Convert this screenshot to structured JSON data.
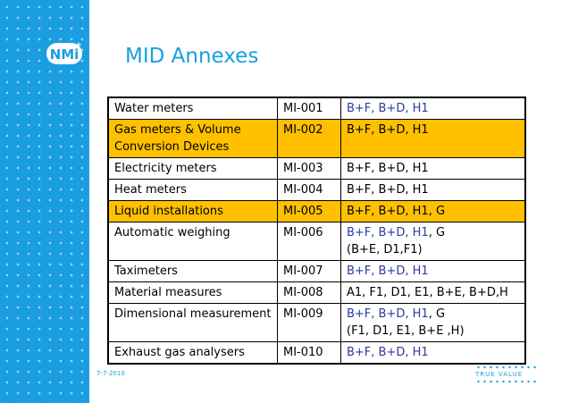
{
  "title": "MID Annexes",
  "logo_text": "NMi",
  "rows": [
    {
      "name": "Water meters",
      "code": "MI-001",
      "mods": [
        {
          "t": "B+F, B+D, H1",
          "c": "blue"
        }
      ],
      "mods2": [],
      "highlight": false
    },
    {
      "name": "Gas meters & Volume Conversion Devices",
      "code": "MI-002",
      "mods": [
        {
          "t": "B+F, B+D, H1",
          "c": "black"
        }
      ],
      "mods2": [],
      "highlight": true
    },
    {
      "name": "Electricity meters",
      "code": "MI-003",
      "mods": [
        {
          "t": "B+F, B+D, H1",
          "c": "black"
        }
      ],
      "mods2": [],
      "highlight": false
    },
    {
      "name": "Heat meters",
      "code": "MI-004",
      "mods": [
        {
          "t": "B+F, B+D, H1",
          "c": "black"
        }
      ],
      "mods2": [],
      "highlight": false
    },
    {
      "name": "Liquid installations",
      "code": "MI-005",
      "mods": [
        {
          "t": "B+F, B+D, H1, G",
          "c": "black"
        }
      ],
      "mods2": [],
      "highlight": true
    },
    {
      "name": "Automatic weighing",
      "code": "MI-006",
      "mods": [
        {
          "t": "B+F, B+D, H1",
          "c": "blue"
        },
        {
          "t": ", G",
          "c": "black"
        }
      ],
      "mods2": [
        {
          "t": "(B+E, D1,F1)",
          "c": "black"
        }
      ],
      "highlight": false
    },
    {
      "name": "Taximeters",
      "code": "MI-007",
      "mods": [
        {
          "t": "B+F, B+D, H1",
          "c": "blue"
        }
      ],
      "mods2": [],
      "highlight": false
    },
    {
      "name": "Material measures",
      "code": "MI-008",
      "mods": [
        {
          "t": "A1, F1, D1, E1, B+E, B+D,H",
          "c": "black"
        }
      ],
      "mods2": [],
      "highlight": false
    },
    {
      "name": "Dimensional measurement",
      "code": "MI-009",
      "mods": [
        {
          "t": "B+F, B+D, H1",
          "c": "blue"
        },
        {
          "t": ", G",
          "c": "black"
        }
      ],
      "mods2": [
        {
          "t": "(F1, D1, E1, B+E ,H)",
          "c": "black"
        }
      ],
      "highlight": false
    },
    {
      "name": "Exhaust gas analysers",
      "code": "MI-010",
      "mods": [
        {
          "t": "B+F, B+D, H1",
          "c": "blue"
        }
      ],
      "mods2": [],
      "highlight": false
    }
  ],
  "footer": {
    "date": "7-7-2010",
    "brand": "TRUE VALUE"
  },
  "colors": {
    "brand_blue": "#1a9ee0",
    "highlight": "#ffc000",
    "text_blue": "#2b3a9c"
  }
}
